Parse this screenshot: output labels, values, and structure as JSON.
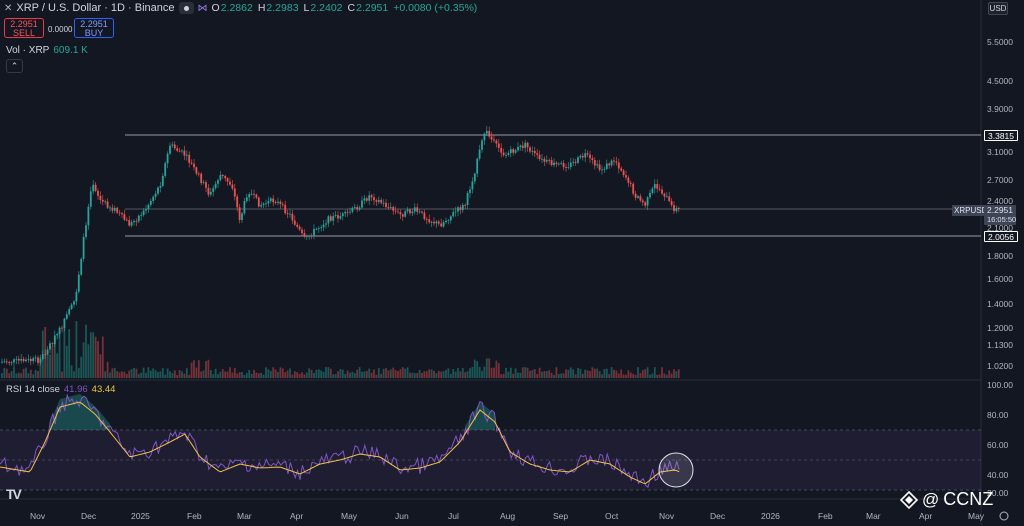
{
  "header": {
    "symbol": "XRP / U.S. Dollar · 1D · Binance",
    "open_k": "O",
    "open_v": "2.2862",
    "high_k": "H",
    "high_v": "2.2983",
    "low_k": "L",
    "low_v": "2.2402",
    "close_k": "C",
    "close_v": "2.2951",
    "change": "+0.0080 (+0.35%)"
  },
  "trade": {
    "sell_price": "2.2951",
    "sell_label": "SELL",
    "spread": "0.0000",
    "buy_price": "2.2951",
    "buy_label": "BUY"
  },
  "volume": {
    "label": "Vol · XRP",
    "value": "609.1 K"
  },
  "currency": "USD",
  "price_axis": {
    "ticks": [
      "5.5000",
      "4.5000",
      "3.9000",
      "3.1000",
      "2.7000",
      "2.4000",
      "2.1000",
      "1.8000",
      "1.6000",
      "1.4000",
      "1.2000",
      "1.1300",
      "1.0200"
    ],
    "upper_level": "3.3815",
    "lower_level": "2.0056",
    "last_symbol": "XRPUSD",
    "last_price": "2.2951",
    "countdown": "16:05:50"
  },
  "rsi": {
    "label": "RSI 14 close",
    "rsi_value": "41.96",
    "ma_value": "43.44",
    "ticks": [
      "100.00",
      "80.00",
      "60.00",
      "40.00",
      "20.00"
    ]
  },
  "time_axis": [
    "Nov",
    "Dec",
    "2025",
    "Feb",
    "Mar",
    "Apr",
    "May",
    "Jun",
    "Jul",
    "Aug",
    "Sep",
    "Oct",
    "Nov",
    "Dec",
    "2026",
    "Feb",
    "Mar",
    "Apr",
    "May"
  ],
  "colors": {
    "up": "#26a69a",
    "down": "#ef5350",
    "rsi": "#7e57c2",
    "rsi_ma": "#f5c242",
    "bg": "#131722"
  },
  "watermark": {
    "at": "@",
    "text": "CCNZ"
  }
}
